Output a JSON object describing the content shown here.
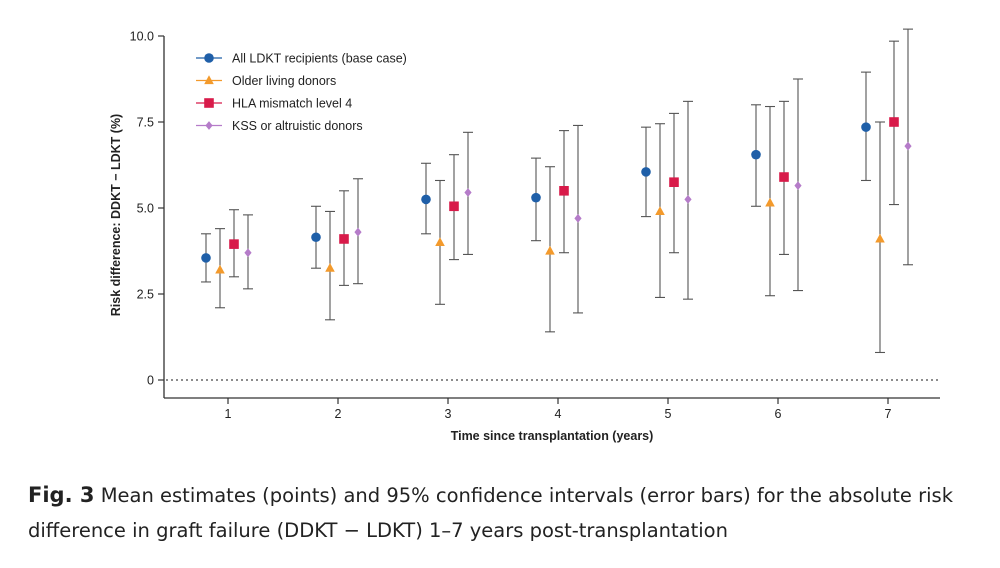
{
  "chart_data": {
    "type": "scatter",
    "subtype": "point-estimate with 95% confidence interval error bars",
    "title": "",
    "xlabel": "Time since transplantation (years)",
    "ylabel": "Risk difference: DDKT − LDKT (%)",
    "x": [
      1,
      2,
      3,
      4,
      5,
      6,
      7
    ],
    "x_tick_labels": [
      "1",
      "2",
      "3",
      "4",
      "5",
      "6",
      "7"
    ],
    "ylim": [
      -0.5,
      10.0
    ],
    "y_ticks": [
      0,
      2.5,
      5.0,
      7.5,
      10.0
    ],
    "y_tick_labels": [
      "0",
      "2.5",
      "5.0",
      "7.5",
      "10.0"
    ],
    "reference_line": {
      "y": 0,
      "style": "dotted"
    },
    "legend_position": "top-left",
    "series": [
      {
        "name": "All LDKT recipients (base case)",
        "marker": "circle",
        "color": "#1f5fa8",
        "values": [
          3.55,
          4.15,
          5.25,
          5.3,
          6.05,
          6.55,
          7.35
        ],
        "lower": [
          2.85,
          3.25,
          4.25,
          4.05,
          4.75,
          5.05,
          5.8
        ],
        "upper": [
          4.25,
          5.05,
          6.3,
          6.45,
          7.35,
          8.0,
          8.95
        ]
      },
      {
        "name": "Older living donors",
        "marker": "triangle",
        "color": "#f39a2c",
        "values": [
          3.2,
          3.25,
          4.0,
          3.75,
          4.9,
          5.15,
          4.1
        ],
        "lower": [
          2.1,
          1.75,
          2.2,
          1.4,
          2.4,
          2.45,
          0.8
        ],
        "upper": [
          4.4,
          4.9,
          5.8,
          6.2,
          7.45,
          7.95,
          7.5
        ]
      },
      {
        "name": "HLA mismatch level 4",
        "marker": "square",
        "color": "#d81b4a",
        "values": [
          3.95,
          4.1,
          5.05,
          5.5,
          5.75,
          5.9,
          7.5
        ],
        "lower": [
          3.0,
          2.75,
          3.5,
          3.7,
          3.7,
          3.65,
          5.1
        ],
        "upper": [
          4.95,
          5.5,
          6.55,
          7.25,
          7.75,
          8.1,
          9.85
        ]
      },
      {
        "name": "KSS or altruistic donors",
        "marker": "diamond",
        "color": "#b57cc9",
        "values": [
          3.7,
          4.3,
          5.45,
          4.7,
          5.25,
          5.65,
          6.8
        ],
        "lower": [
          2.65,
          2.8,
          3.65,
          1.95,
          2.35,
          2.6,
          3.35
        ],
        "upper": [
          4.8,
          5.85,
          7.2,
          7.4,
          8.1,
          8.75,
          10.2
        ]
      }
    ]
  },
  "caption": {
    "label": "Fig. 3",
    "text": "Mean estimates (points) and 95% confidence intervals (error bars) for the absolute risk difference in graft failure (DDKT − LDKT) 1–7 years post-transplantation"
  }
}
